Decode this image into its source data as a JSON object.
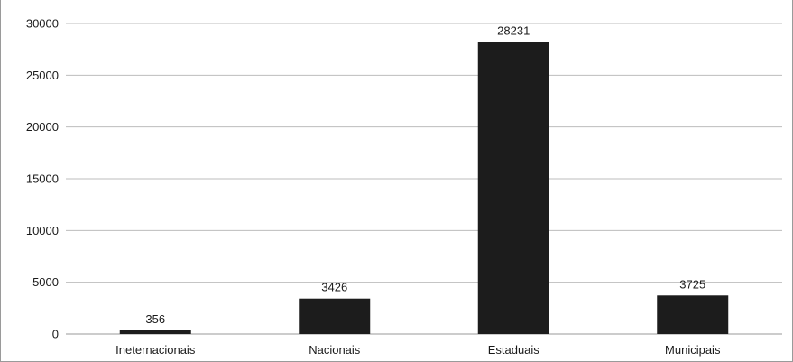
{
  "chart_data": {
    "type": "bar",
    "title": "",
    "xlabel": "",
    "ylabel": "",
    "categories": [
      "Ineternacionais",
      "Nacionais",
      "Estaduais",
      "Municipais"
    ],
    "values": [
      356,
      3426,
      28231,
      3725
    ],
    "data_labels": [
      "356",
      "3426",
      "28231",
      "3725"
    ],
    "y_ticks": [
      0,
      5000,
      10000,
      15000,
      20000,
      25000,
      30000
    ],
    "ylim": [
      0,
      30000
    ],
    "grid": true,
    "legend": "none",
    "colors": {
      "bar": "#1c1c1c",
      "grid": "#bdbdbd",
      "axis": "#9a9a9a"
    }
  }
}
